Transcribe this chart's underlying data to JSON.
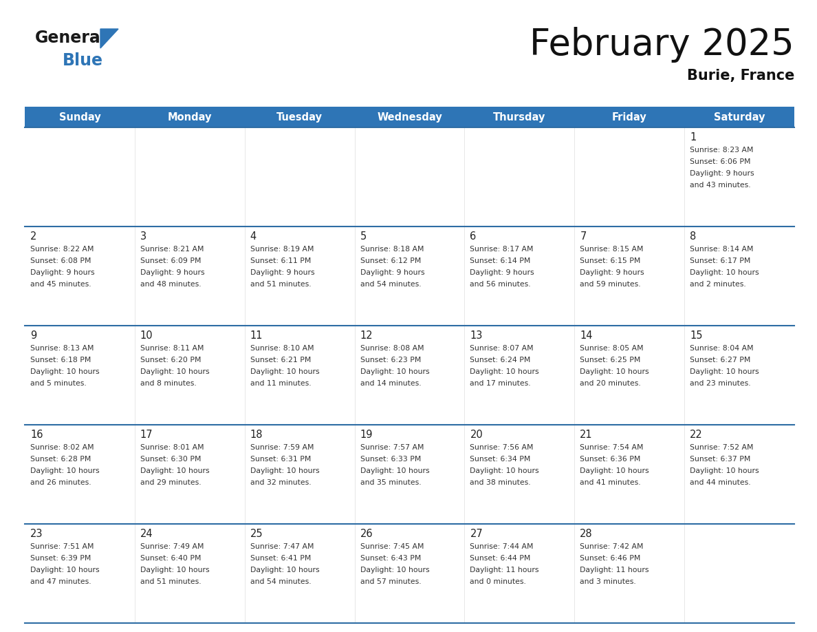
{
  "title": "February 2025",
  "subtitle": "Burie, France",
  "header_color": "#2E75B6",
  "header_text_color": "#FFFFFF",
  "days_of_week": [
    "Sunday",
    "Monday",
    "Tuesday",
    "Wednesday",
    "Thursday",
    "Friday",
    "Saturday"
  ],
  "background_color": "#FFFFFF",
  "cell_bg": "#FFFFFF",
  "separator_color": "#2E6DA4",
  "day_number_color": "#222222",
  "cell_text_color": "#333333",
  "calendar_data": [
    [
      null,
      null,
      null,
      null,
      null,
      null,
      {
        "day": 1,
        "sunrise": "8:23 AM",
        "sunset": "6:06 PM",
        "daylight": "9 hours\nand 43 minutes."
      }
    ],
    [
      {
        "day": 2,
        "sunrise": "8:22 AM",
        "sunset": "6:08 PM",
        "daylight": "9 hours\nand 45 minutes."
      },
      {
        "day": 3,
        "sunrise": "8:21 AM",
        "sunset": "6:09 PM",
        "daylight": "9 hours\nand 48 minutes."
      },
      {
        "day": 4,
        "sunrise": "8:19 AM",
        "sunset": "6:11 PM",
        "daylight": "9 hours\nand 51 minutes."
      },
      {
        "day": 5,
        "sunrise": "8:18 AM",
        "sunset": "6:12 PM",
        "daylight": "9 hours\nand 54 minutes."
      },
      {
        "day": 6,
        "sunrise": "8:17 AM",
        "sunset": "6:14 PM",
        "daylight": "9 hours\nand 56 minutes."
      },
      {
        "day": 7,
        "sunrise": "8:15 AM",
        "sunset": "6:15 PM",
        "daylight": "9 hours\nand 59 minutes."
      },
      {
        "day": 8,
        "sunrise": "8:14 AM",
        "sunset": "6:17 PM",
        "daylight": "10 hours\nand 2 minutes."
      }
    ],
    [
      {
        "day": 9,
        "sunrise": "8:13 AM",
        "sunset": "6:18 PM",
        "daylight": "10 hours\nand 5 minutes."
      },
      {
        "day": 10,
        "sunrise": "8:11 AM",
        "sunset": "6:20 PM",
        "daylight": "10 hours\nand 8 minutes."
      },
      {
        "day": 11,
        "sunrise": "8:10 AM",
        "sunset": "6:21 PM",
        "daylight": "10 hours\nand 11 minutes."
      },
      {
        "day": 12,
        "sunrise": "8:08 AM",
        "sunset": "6:23 PM",
        "daylight": "10 hours\nand 14 minutes."
      },
      {
        "day": 13,
        "sunrise": "8:07 AM",
        "sunset": "6:24 PM",
        "daylight": "10 hours\nand 17 minutes."
      },
      {
        "day": 14,
        "sunrise": "8:05 AM",
        "sunset": "6:25 PM",
        "daylight": "10 hours\nand 20 minutes."
      },
      {
        "day": 15,
        "sunrise": "8:04 AM",
        "sunset": "6:27 PM",
        "daylight": "10 hours\nand 23 minutes."
      }
    ],
    [
      {
        "day": 16,
        "sunrise": "8:02 AM",
        "sunset": "6:28 PM",
        "daylight": "10 hours\nand 26 minutes."
      },
      {
        "day": 17,
        "sunrise": "8:01 AM",
        "sunset": "6:30 PM",
        "daylight": "10 hours\nand 29 minutes."
      },
      {
        "day": 18,
        "sunrise": "7:59 AM",
        "sunset": "6:31 PM",
        "daylight": "10 hours\nand 32 minutes."
      },
      {
        "day": 19,
        "sunrise": "7:57 AM",
        "sunset": "6:33 PM",
        "daylight": "10 hours\nand 35 minutes."
      },
      {
        "day": 20,
        "sunrise": "7:56 AM",
        "sunset": "6:34 PM",
        "daylight": "10 hours\nand 38 minutes."
      },
      {
        "day": 21,
        "sunrise": "7:54 AM",
        "sunset": "6:36 PM",
        "daylight": "10 hours\nand 41 minutes."
      },
      {
        "day": 22,
        "sunrise": "7:52 AM",
        "sunset": "6:37 PM",
        "daylight": "10 hours\nand 44 minutes."
      }
    ],
    [
      {
        "day": 23,
        "sunrise": "7:51 AM",
        "sunset": "6:39 PM",
        "daylight": "10 hours\nand 47 minutes."
      },
      {
        "day": 24,
        "sunrise": "7:49 AM",
        "sunset": "6:40 PM",
        "daylight": "10 hours\nand 51 minutes."
      },
      {
        "day": 25,
        "sunrise": "7:47 AM",
        "sunset": "6:41 PM",
        "daylight": "10 hours\nand 54 minutes."
      },
      {
        "day": 26,
        "sunrise": "7:45 AM",
        "sunset": "6:43 PM",
        "daylight": "10 hours\nand 57 minutes."
      },
      {
        "day": 27,
        "sunrise": "7:44 AM",
        "sunset": "6:44 PM",
        "daylight": "11 hours\nand 0 minutes."
      },
      {
        "day": 28,
        "sunrise": "7:42 AM",
        "sunset": "6:46 PM",
        "daylight": "11 hours\nand 3 minutes."
      },
      null
    ]
  ]
}
